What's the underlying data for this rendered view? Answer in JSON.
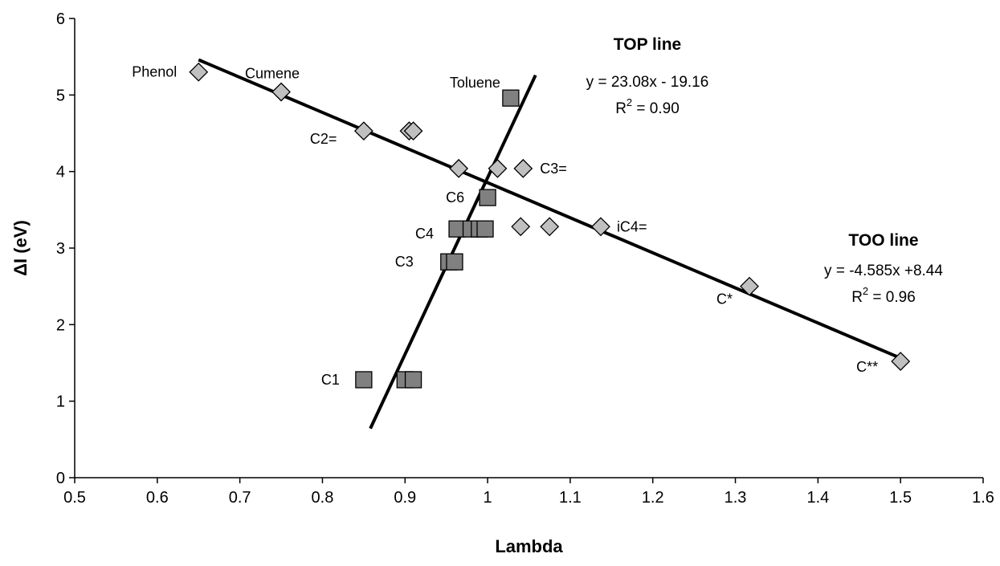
{
  "chart_data": {
    "type": "scatter",
    "title": "",
    "xlabel": "Lambda",
    "ylabel": "ΔI (eV)",
    "xlim": [
      0.5,
      1.6
    ],
    "ylim": [
      0,
      6
    ],
    "xticks": [
      "0.5",
      "0.6",
      "0.7",
      "0.8",
      "0.9",
      "1",
      "1.1",
      "1.2",
      "1.3",
      "1.4",
      "1.5",
      "1.6"
    ],
    "yticks": [
      "0",
      "1",
      "2",
      "3",
      "4",
      "5",
      "6"
    ],
    "grid": false,
    "legend": "none",
    "colors": {
      "diamond_fill": "#c0c0c0",
      "square_fill": "#808080",
      "marker_stroke": "#000000",
      "line": "#000000"
    },
    "series": [
      {
        "marker": "diamond",
        "x": [
          0.65,
          0.75,
          0.85,
          0.905,
          0.91,
          0.965,
          1.012,
          1.043,
          1.04,
          1.075,
          1.137,
          1.317,
          1.5
        ],
        "y": [
          5.3,
          5.04,
          4.53,
          4.53,
          4.53,
          4.04,
          4.04,
          4.04,
          3.28,
          3.28,
          3.28,
          2.5,
          1.52
        ]
      },
      {
        "marker": "square",
        "x": [
          1.028,
          1.0,
          0.963,
          0.98,
          0.99,
          0.997,
          0.953,
          0.96,
          0.85,
          0.9,
          0.91
        ],
        "y": [
          4.96,
          3.66,
          3.25,
          3.25,
          3.25,
          3.25,
          2.82,
          2.82,
          1.28,
          1.28,
          1.28
        ]
      }
    ],
    "trendlines": [
      {
        "title": "TOP line",
        "equation": "y = 23.08x - 19.16",
        "r2_prefix": "R",
        "r2_exp": "2",
        "r2_suffix": " = 0.90",
        "slope": 23.08,
        "intercept": -19.16,
        "x_range": [
          0.858,
          1.058
        ]
      },
      {
        "title": "TOO line",
        "equation": "y = -4.585x +8.44",
        "r2_prefix": "R",
        "r2_exp": "2",
        "r2_suffix": " = 0.96",
        "slope": -4.585,
        "intercept": 8.44,
        "x_range": [
          0.65,
          1.5
        ]
      }
    ],
    "point_labels": [
      {
        "text": "Phenol",
        "x": 0.65,
        "y": 5.3
      },
      {
        "text": "Cumene",
        "x": 0.75,
        "y": 5.04
      },
      {
        "text": "C2=",
        "x": 0.85,
        "y": 4.53
      },
      {
        "text": "Toluene",
        "x": 1.028,
        "y": 4.96
      },
      {
        "text": "C3=",
        "x": 1.043,
        "y": 4.04
      },
      {
        "text": "C6",
        "x": 1.0,
        "y": 3.66
      },
      {
        "text": "C4",
        "x": 0.963,
        "y": 3.25
      },
      {
        "text": "iC4=",
        "x": 1.137,
        "y": 3.28
      },
      {
        "text": "C3",
        "x": 0.953,
        "y": 2.82
      },
      {
        "text": "C*",
        "x": 1.317,
        "y": 2.5
      },
      {
        "text": "C**",
        "x": 1.5,
        "y": 1.52
      },
      {
        "text": "C1",
        "x": 0.85,
        "y": 1.28
      }
    ]
  }
}
